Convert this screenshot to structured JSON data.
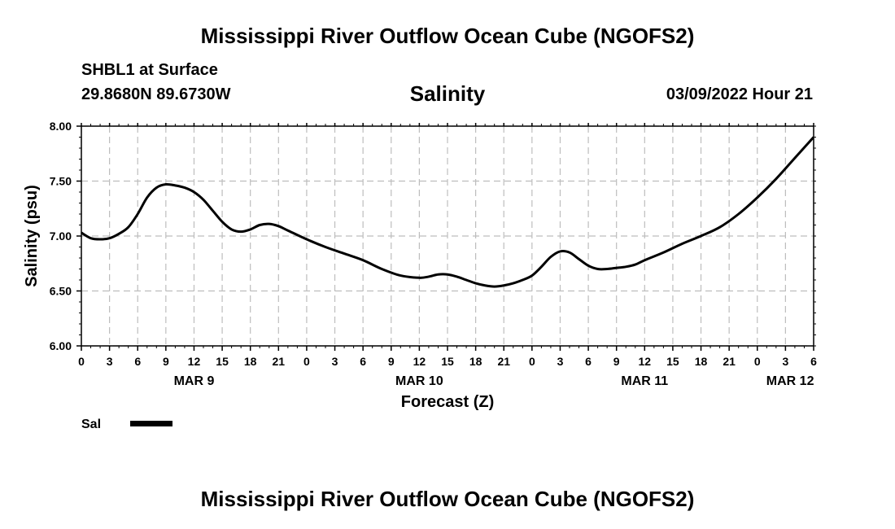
{
  "header": {
    "title": "Mississippi River Outflow Ocean Cube (NGOFS2)",
    "station": "SHBL1 at Surface",
    "coords": "29.8680N  89.6730W",
    "variable": "Salinity",
    "datetime": "03/09/2022 Hour 21"
  },
  "footer": {
    "title": "Mississippi River Outflow Ocean Cube (NGOFS2)"
  },
  "chart_data": {
    "type": "line",
    "title": "Salinity",
    "xlabel": "Forecast (Z)",
    "ylabel": "Salinity (psu)",
    "ylim": [
      6.0,
      8.0
    ],
    "yticks": [
      "6.00",
      "6.50",
      "7.00",
      "7.50",
      "8.00"
    ],
    "xlim_hours": [
      0,
      78
    ],
    "xtick_labels": [
      "0",
      "3",
      "6",
      "9",
      "12",
      "15",
      "18",
      "21",
      "0",
      "3",
      "6",
      "9",
      "12",
      "15",
      "18",
      "21",
      "0",
      "3",
      "6",
      "9",
      "12",
      "15",
      "18",
      "21",
      "0",
      "3",
      "6"
    ],
    "day_labels": [
      {
        "label": "MAR 9",
        "hour": 12
      },
      {
        "label": "MAR 10",
        "hour": 36
      },
      {
        "label": "MAR 11",
        "hour": 60
      },
      {
        "label": "MAR 12",
        "hour": 75.5
      }
    ],
    "grid": true,
    "legend": [
      {
        "name": "Sal",
        "color": "#000000"
      }
    ],
    "series": [
      {
        "name": "Sal",
        "x_hours": [
          0,
          1,
          2,
          3,
          4,
          5,
          6,
          7,
          8,
          9,
          10,
          11,
          12,
          13,
          14,
          15,
          16,
          17,
          18,
          19,
          20,
          21,
          22,
          24,
          26,
          28,
          30,
          32,
          34,
          36,
          37,
          38,
          39,
          40,
          41,
          42,
          43,
          44,
          45,
          46,
          47,
          48,
          49,
          50,
          51,
          52,
          53,
          54,
          55,
          56,
          57,
          58,
          59,
          60,
          62,
          64,
          66,
          68,
          70,
          72,
          74,
          76,
          78
        ],
        "values": [
          7.03,
          6.98,
          6.97,
          6.98,
          7.02,
          7.08,
          7.2,
          7.35,
          7.44,
          7.47,
          7.46,
          7.44,
          7.4,
          7.33,
          7.23,
          7.13,
          7.06,
          7.04,
          7.06,
          7.1,
          7.11,
          7.09,
          7.05,
          6.97,
          6.9,
          6.84,
          6.78,
          6.7,
          6.64,
          6.62,
          6.63,
          6.65,
          6.65,
          6.63,
          6.6,
          6.57,
          6.55,
          6.54,
          6.55,
          6.57,
          6.6,
          6.64,
          6.72,
          6.81,
          6.86,
          6.85,
          6.79,
          6.73,
          6.7,
          6.7,
          6.71,
          6.72,
          6.74,
          6.78,
          6.85,
          6.93,
          7.0,
          7.08,
          7.2,
          7.35,
          7.52,
          7.71,
          7.9
        ]
      }
    ]
  }
}
